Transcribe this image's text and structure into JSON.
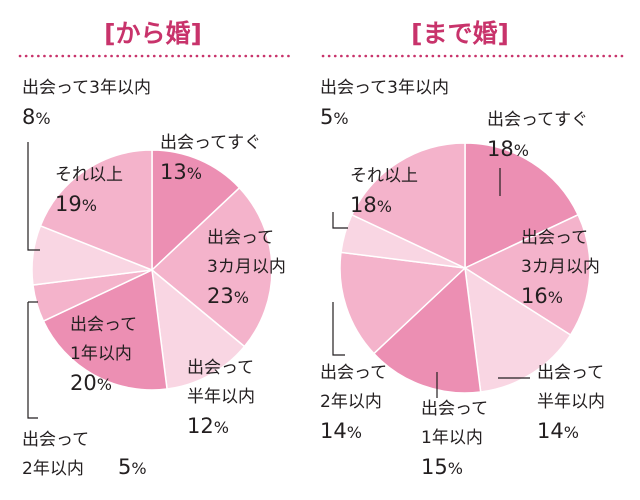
{
  "chart_data": [
    {
      "type": "pie",
      "title": "[から婚]",
      "slices": [
        {
          "line1": "出会ってすぐ",
          "line2": "",
          "line3": "",
          "value": 13,
          "suffix": "%",
          "color": "#ec8fb3"
        },
        {
          "line1": "出会って",
          "line2": "3カ月以内",
          "line3": "",
          "value": 23,
          "suffix": "%",
          "color": "#f4b3cb"
        },
        {
          "line1": "出会って",
          "line2": "半年以内",
          "line3": "",
          "value": 12,
          "suffix": "%",
          "color": "#f9d6e3"
        },
        {
          "line1": "出会って",
          "line2": "1年以内",
          "line3": "",
          "value": 20,
          "suffix": "%",
          "color": "#ec8fb3"
        },
        {
          "line1": "出会って",
          "line2": "2年以内",
          "line3": "",
          "value": 5,
          "suffix": "%",
          "color": "#f4b3cb"
        },
        {
          "line1": "出会って3年以内",
          "line2": "",
          "line3": "",
          "value": 8,
          "suffix": "%",
          "color": "#f9d6e3"
        },
        {
          "line1": "それ以上",
          "line2": "",
          "line3": "",
          "value": 19,
          "suffix": "%",
          "color": "#f4b3cb"
        }
      ]
    },
    {
      "type": "pie",
      "title": "[まで婚]",
      "slices": [
        {
          "line1": "出会ってすぐ",
          "line2": "",
          "line3": "",
          "value": 18,
          "suffix": "%",
          "color": "#ec8fb3"
        },
        {
          "line1": "出会って",
          "line2": "3カ月以内",
          "line3": "",
          "value": 16,
          "suffix": "%",
          "color": "#f4b3cb"
        },
        {
          "line1": "出会って",
          "line2": "半年以内",
          "line3": "",
          "value": 14,
          "suffix": "%",
          "color": "#f9d6e3"
        },
        {
          "line1": "出会って",
          "line2": "1年以内",
          "line3": "",
          "value": 15,
          "suffix": "%",
          "color": "#ec8fb3"
        },
        {
          "line1": "出会って",
          "line2": "2年以内",
          "line3": "",
          "value": 14,
          "suffix": "%",
          "color": "#f4b3cb"
        },
        {
          "line1": "出会って3年以内",
          "line2": "",
          "line3": "",
          "value": 5,
          "suffix": "%",
          "color": "#f9d6e3"
        },
        {
          "line1": "それ以上",
          "line2": "",
          "line3": "",
          "value": 18,
          "suffix": "%",
          "color": "#f4b3cb"
        }
      ]
    }
  ]
}
